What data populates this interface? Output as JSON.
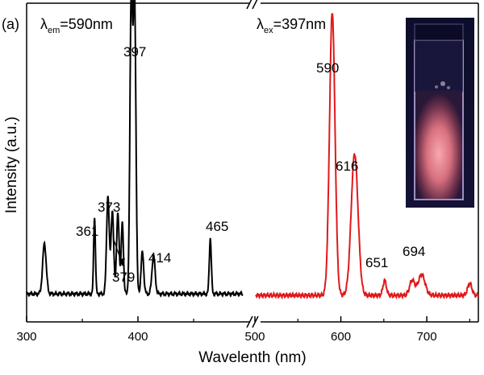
{
  "chart_data": {
    "type": "line",
    "panel_label": "(a)",
    "xlabel": "Wavelenth (nm)",
    "ylabel": "Intensity (a.u.)",
    "x_ticks": [
      "300",
      "400",
      "500",
      "600",
      "700"
    ],
    "excitation_annotation": {
      "symbol": "λ",
      "sub": "em",
      "text": "=590nm"
    },
    "emission_annotation": {
      "symbol": "λ",
      "sub": "ex",
      "text": "=397nm"
    },
    "axis_break": "//",
    "inset_photo": "pink-glowing-cuvette",
    "colors": {
      "excitation": "#000000",
      "emission": "#e0191b"
    },
    "excitation_spectrum": {
      "xlim": [
        300,
        500
      ],
      "ylim": [
        0,
        1.08
      ],
      "baseline": 0.095,
      "peaks": [
        {
          "x": 316,
          "y": 0.17,
          "w": 1.6
        },
        {
          "x": 361,
          "y": 0.26,
          "w": 0.8
        },
        {
          "x": 373,
          "y": 0.33,
          "w": 1.2
        },
        {
          "x": 377,
          "y": 0.28,
          "w": 1.2
        },
        {
          "x": 382,
          "y": 0.27,
          "w": 1.2
        },
        {
          "x": 386,
          "y": 0.24,
          "w": 1.0
        },
        {
          "x": 394,
          "y": 1.0,
          "w": 1.2
        },
        {
          "x": 397,
          "y": 0.99,
          "w": 1.2
        },
        {
          "x": 404,
          "y": 0.14,
          "w": 1.2
        },
        {
          "x": 414,
          "y": 0.13,
          "w": 1.4
        },
        {
          "x": 465,
          "y": 0.19,
          "w": 0.9
        }
      ]
    },
    "emission_spectrum": {
      "xlim": [
        500,
        760
      ],
      "ylim": [
        0,
        1.08
      ],
      "baseline": 0.09,
      "peaks": [
        {
          "x": 590,
          "y": 0.96,
          "w": 3.2
        },
        {
          "x": 616,
          "y": 0.48,
          "w": 4.0
        },
        {
          "x": 651,
          "y": 0.05,
          "w": 2.0
        },
        {
          "x": 683,
          "y": 0.05,
          "w": 3.0
        },
        {
          "x": 694,
          "y": 0.07,
          "w": 4.0
        },
        {
          "x": 750,
          "y": 0.04,
          "w": 2.5
        }
      ]
    },
    "peak_labels": [
      {
        "text": "397",
        "spectrum": "excitation",
        "x": 397
      },
      {
        "text": "373",
        "spectrum": "excitation",
        "x": 373
      },
      {
        "text": "361",
        "spectrum": "excitation",
        "x": 361
      },
      {
        "text": "379",
        "spectrum": "excitation",
        "x": 379
      },
      {
        "text": "414",
        "spectrum": "excitation",
        "x": 414
      },
      {
        "text": "465",
        "spectrum": "excitation",
        "x": 465
      },
      {
        "text": "590",
        "spectrum": "emission",
        "x": 590
      },
      {
        "text": "616",
        "spectrum": "emission",
        "x": 616
      },
      {
        "text": "651",
        "spectrum": "emission",
        "x": 651
      },
      {
        "text": "694",
        "spectrum": "emission",
        "x": 694
      }
    ]
  }
}
